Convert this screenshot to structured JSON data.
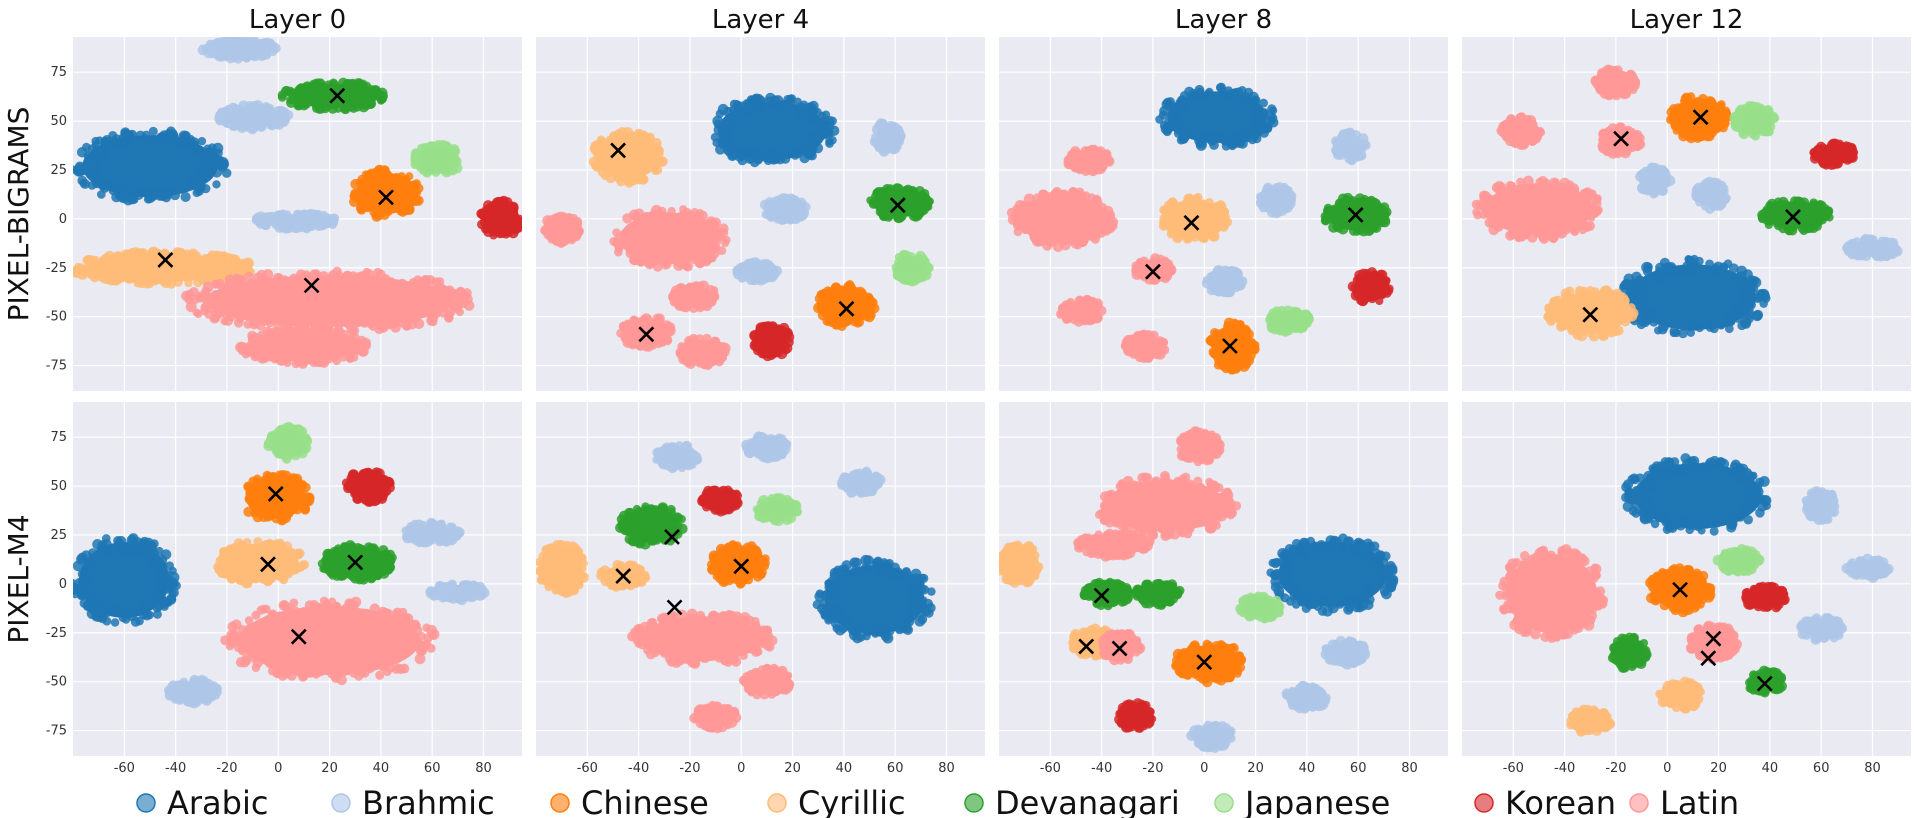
{
  "chart_data": {
    "type": "scatter",
    "columns": [
      "Layer 0",
      "Layer 4",
      "Layer 8",
      "Layer 12"
    ],
    "rows": [
      "PIXEL-BIGRAMS",
      "PIXEL-M4"
    ],
    "xlim": [
      -80,
      95
    ],
    "ylim": [
      -88,
      93
    ],
    "xticks": [
      -60,
      -40,
      -20,
      0,
      20,
      40,
      60,
      80
    ],
    "yticks": [
      -75,
      -50,
      -25,
      0,
      25,
      50,
      75
    ],
    "grid": true,
    "legend_position": "bottom",
    "legend": [
      {
        "name": "Arabic",
        "color": "#1f77b4"
      },
      {
        "name": "Brahmic",
        "color": "#aec7e8"
      },
      {
        "name": "Chinese",
        "color": "#ff7f0e"
      },
      {
        "name": "Cyrillic",
        "color": "#ffbb78"
      },
      {
        "name": "Devanagari",
        "color": "#2ca02c"
      },
      {
        "name": "Japanese",
        "color": "#98df8a"
      },
      {
        "name": "Korean",
        "color": "#d62728"
      },
      {
        "name": "Latin",
        "color": "#ff9896"
      }
    ],
    "panels": [
      {
        "row": "PIXEL-BIGRAMS",
        "column": "Layer 0",
        "clusters": [
          {
            "script": "Arabic",
            "cx": -50,
            "cy": 27,
            "rx": 30,
            "ry": 18
          },
          {
            "script": "Brahmic",
            "cx": -15,
            "cy": 87,
            "rx": 14,
            "ry": 5
          },
          {
            "script": "Brahmic",
            "cx": -10,
            "cy": 52,
            "rx": 14,
            "ry": 6
          },
          {
            "script": "Brahmic",
            "cx": 7,
            "cy": -1,
            "rx": 16,
            "ry": 4
          },
          {
            "script": "Devanagari",
            "cx": 22,
            "cy": 63,
            "rx": 20,
            "ry": 7
          },
          {
            "script": "Chinese",
            "cx": 42,
            "cy": 13,
            "rx": 13,
            "ry": 12
          },
          {
            "script": "Japanese",
            "cx": 62,
            "cy": 30,
            "rx": 9,
            "ry": 8
          },
          {
            "script": "Korean",
            "cx": 87,
            "cy": 0,
            "rx": 8,
            "ry": 9
          },
          {
            "script": "Cyrillic",
            "cx": -45,
            "cy": -25,
            "rx": 35,
            "ry": 8
          },
          {
            "script": "Latin",
            "cx": 20,
            "cy": -42,
            "rx": 55,
            "ry": 15
          },
          {
            "script": "Latin",
            "cx": 10,
            "cy": -65,
            "rx": 25,
            "ry": 9
          }
        ],
        "centroids": [
          {
            "x": -44,
            "y": -21
          },
          {
            "x": 13,
            "y": -34
          },
          {
            "x": 23,
            "y": 63
          },
          {
            "x": 42,
            "y": 11
          }
        ]
      },
      {
        "row": "PIXEL-BIGRAMS",
        "column": "Layer 4",
        "clusters": [
          {
            "script": "Arabic",
            "cx": 12,
            "cy": 45,
            "rx": 24,
            "ry": 17
          },
          {
            "script": "Cyrillic",
            "cx": -44,
            "cy": 32,
            "rx": 14,
            "ry": 13
          },
          {
            "script": "Brahmic",
            "cx": 57,
            "cy": 42,
            "rx": 5,
            "ry": 8
          },
          {
            "script": "Brahmic",
            "cx": 17,
            "cy": 5,
            "rx": 8,
            "ry": 6
          },
          {
            "script": "Brahmic",
            "cx": 6,
            "cy": -27,
            "rx": 8,
            "ry": 5
          },
          {
            "script": "Devanagari",
            "cx": 62,
            "cy": 8,
            "rx": 12,
            "ry": 8
          },
          {
            "script": "Japanese",
            "cx": 66,
            "cy": -25,
            "rx": 7,
            "ry": 7
          },
          {
            "script": "Chinese",
            "cx": 41,
            "cy": -44,
            "rx": 11,
            "ry": 11
          },
          {
            "script": "Korean",
            "cx": 12,
            "cy": -62,
            "rx": 7,
            "ry": 8
          },
          {
            "script": "Latin",
            "cx": -28,
            "cy": -10,
            "rx": 22,
            "ry": 15
          },
          {
            "script": "Latin",
            "cx": -70,
            "cy": -5,
            "rx": 7,
            "ry": 7
          },
          {
            "script": "Latin",
            "cx": -37,
            "cy": -58,
            "rx": 10,
            "ry": 8
          },
          {
            "script": "Latin",
            "cx": -15,
            "cy": -68,
            "rx": 9,
            "ry": 7
          },
          {
            "script": "Latin",
            "cx": -18,
            "cy": -40,
            "rx": 9,
            "ry": 6
          }
        ],
        "centroids": [
          {
            "x": -48,
            "y": 35
          },
          {
            "x": 61,
            "y": 7
          },
          {
            "x": 41,
            "y": -46
          },
          {
            "x": -37,
            "y": -59
          }
        ]
      },
      {
        "row": "PIXEL-BIGRAMS",
        "column": "Layer 8",
        "clusters": [
          {
            "script": "Arabic",
            "cx": 5,
            "cy": 52,
            "rx": 22,
            "ry": 15
          },
          {
            "script": "Brahmic",
            "cx": 57,
            "cy": 37,
            "rx": 6,
            "ry": 7
          },
          {
            "script": "Brahmic",
            "cx": 28,
            "cy": 10,
            "rx": 6,
            "ry": 7
          },
          {
            "script": "Brahmic",
            "cx": 8,
            "cy": -32,
            "rx": 7,
            "ry": 6
          },
          {
            "script": "Cyrillic",
            "cx": -4,
            "cy": 0,
            "rx": 13,
            "ry": 11
          },
          {
            "script": "Devanagari",
            "cx": 59,
            "cy": 2,
            "rx": 12,
            "ry": 9
          },
          {
            "script": "Korean",
            "cx": 65,
            "cy": -35,
            "rx": 7,
            "ry": 8
          },
          {
            "script": "Japanese",
            "cx": 33,
            "cy": -52,
            "rx": 8,
            "ry": 6
          },
          {
            "script": "Chinese",
            "cx": 11,
            "cy": -65,
            "rx": 9,
            "ry": 12
          },
          {
            "script": "Latin",
            "cx": -55,
            "cy": 0,
            "rx": 20,
            "ry": 14
          },
          {
            "script": "Latin",
            "cx": -45,
            "cy": 30,
            "rx": 8,
            "ry": 6
          },
          {
            "script": "Latin",
            "cx": -20,
            "cy": -26,
            "rx": 7,
            "ry": 6
          },
          {
            "script": "Latin",
            "cx": -48,
            "cy": -47,
            "rx": 8,
            "ry": 6
          },
          {
            "script": "Latin",
            "cx": -23,
            "cy": -65,
            "rx": 8,
            "ry": 6
          }
        ],
        "centroids": [
          {
            "x": -5,
            "y": -2
          },
          {
            "x": -20,
            "y": -27
          },
          {
            "x": 10,
            "y": -65
          },
          {
            "x": 59,
            "y": 2
          }
        ]
      },
      {
        "row": "PIXEL-BIGRAMS",
        "column": "Layer 12",
        "clusters": [
          {
            "script": "Latin",
            "cx": -20,
            "cy": 70,
            "rx": 8,
            "ry": 7
          },
          {
            "script": "Latin",
            "cx": -57,
            "cy": 45,
            "rx": 8,
            "ry": 7
          },
          {
            "script": "Latin",
            "cx": -18,
            "cy": 40,
            "rx": 8,
            "ry": 7
          },
          {
            "script": "Latin",
            "cx": -50,
            "cy": 5,
            "rx": 24,
            "ry": 15
          },
          {
            "script": "Chinese",
            "cx": 12,
            "cy": 52,
            "rx": 11,
            "ry": 11
          },
          {
            "script": "Japanese",
            "cx": 34,
            "cy": 50,
            "rx": 8,
            "ry": 8
          },
          {
            "script": "Korean",
            "cx": 65,
            "cy": 33,
            "rx": 8,
            "ry": 6
          },
          {
            "script": "Brahmic",
            "cx": -5,
            "cy": 20,
            "rx": 6,
            "ry": 7
          },
          {
            "script": "Brahmic",
            "cx": 17,
            "cy": 12,
            "rx": 6,
            "ry": 7
          },
          {
            "script": "Brahmic",
            "cx": 80,
            "cy": -15,
            "rx": 10,
            "ry": 5
          },
          {
            "script": "Devanagari",
            "cx": 50,
            "cy": 2,
            "rx": 13,
            "ry": 8
          },
          {
            "script": "Arabic",
            "cx": 10,
            "cy": -40,
            "rx": 28,
            "ry": 19
          },
          {
            "script": "Cyrillic",
            "cx": -30,
            "cy": -48,
            "rx": 17,
            "ry": 12
          }
        ],
        "centroids": [
          {
            "x": -18,
            "y": 41
          },
          {
            "x": 13,
            "y": 52
          },
          {
            "x": 49,
            "y": 1
          },
          {
            "x": -30,
            "y": -49
          }
        ]
      },
      {
        "row": "PIXEL-M4",
        "column": "Layer 0",
        "clusters": [
          {
            "script": "Arabic",
            "cx": -60,
            "cy": 2,
            "rx": 20,
            "ry": 22
          },
          {
            "script": "Japanese",
            "cx": 4,
            "cy": 72,
            "rx": 8,
            "ry": 8
          },
          {
            "script": "Korean",
            "cx": 35,
            "cy": 50,
            "rx": 9,
            "ry": 8
          },
          {
            "script": "Chinese",
            "cx": -1,
            "cy": 44,
            "rx": 13,
            "ry": 12
          },
          {
            "script": "Brahmic",
            "cx": 60,
            "cy": 26,
            "rx": 11,
            "ry": 5
          },
          {
            "script": "Brahmic",
            "cx": 70,
            "cy": -4,
            "rx": 11,
            "ry": 4
          },
          {
            "script": "Brahmic",
            "cx": -33,
            "cy": -55,
            "rx": 10,
            "ry": 6
          },
          {
            "script": "Cyrillic",
            "cx": -7,
            "cy": 11,
            "rx": 17,
            "ry": 11
          },
          {
            "script": "Devanagari",
            "cx": 31,
            "cy": 11,
            "rx": 14,
            "ry": 9
          },
          {
            "script": "Latin",
            "cx": 20,
            "cy": -29,
            "rx": 40,
            "ry": 20
          }
        ],
        "centroids": [
          {
            "x": -1,
            "y": 46
          },
          {
            "x": -4,
            "y": 10
          },
          {
            "x": 30,
            "y": 11
          },
          {
            "x": 8,
            "y": -27
          }
        ]
      },
      {
        "row": "PIXEL-M4",
        "column": "Layer 4",
        "clusters": [
          {
            "script": "Brahmic",
            "cx": -25,
            "cy": 65,
            "rx": 8,
            "ry": 6
          },
          {
            "script": "Brahmic",
            "cx": 10,
            "cy": 70,
            "rx": 8,
            "ry": 6
          },
          {
            "script": "Brahmic",
            "cx": 47,
            "cy": 52,
            "rx": 8,
            "ry": 6
          },
          {
            "script": "Korean",
            "cx": -8,
            "cy": 43,
            "rx": 7,
            "ry": 6
          },
          {
            "script": "Japanese",
            "cx": 14,
            "cy": 38,
            "rx": 8,
            "ry": 6
          },
          {
            "script": "Devanagari",
            "cx": -35,
            "cy": 30,
            "rx": 12,
            "ry": 10
          },
          {
            "script": "Chinese",
            "cx": -1,
            "cy": 10,
            "rx": 11,
            "ry": 10
          },
          {
            "script": "Cyrillic",
            "cx": -70,
            "cy": 8,
            "rx": 9,
            "ry": 13
          },
          {
            "script": "Cyrillic",
            "cx": -46,
            "cy": 4,
            "rx": 9,
            "ry": 6
          },
          {
            "script": "Arabic",
            "cx": 52,
            "cy": -8,
            "rx": 22,
            "ry": 20
          },
          {
            "script": "Latin",
            "cx": -15,
            "cy": -28,
            "rx": 27,
            "ry": 13
          },
          {
            "script": "Latin",
            "cx": 10,
            "cy": -50,
            "rx": 9,
            "ry": 7
          },
          {
            "script": "Latin",
            "cx": -10,
            "cy": -68,
            "rx": 8,
            "ry": 6
          }
        ],
        "centroids": [
          {
            "x": -27,
            "y": 24
          },
          {
            "x": -46,
            "y": 4
          },
          {
            "x": 0,
            "y": 9
          },
          {
            "x": -26,
            "y": -12
          }
        ]
      },
      {
        "row": "PIXEL-M4",
        "column": "Layer 8",
        "clusters": [
          {
            "script": "Latin",
            "cx": -2,
            "cy": 70,
            "rx": 8,
            "ry": 8
          },
          {
            "script": "Latin",
            "cx": -15,
            "cy": 40,
            "rx": 27,
            "ry": 15
          },
          {
            "script": "Latin",
            "cx": -35,
            "cy": 20,
            "rx": 14,
            "ry": 6
          },
          {
            "script": "Cyrillic",
            "cx": -72,
            "cy": 10,
            "rx": 8,
            "ry": 10
          },
          {
            "script": "Arabic",
            "cx": 50,
            "cy": 5,
            "rx": 24,
            "ry": 19
          },
          {
            "script": "Devanagari",
            "cx": -38,
            "cy": -5,
            "rx": 9,
            "ry": 6
          },
          {
            "script": "Devanagari",
            "cx": -18,
            "cy": -5,
            "rx": 9,
            "ry": 6
          },
          {
            "script": "Japanese",
            "cx": 22,
            "cy": -12,
            "rx": 8,
            "ry": 6
          },
          {
            "script": "Brahmic",
            "cx": 55,
            "cy": -35,
            "rx": 8,
            "ry": 6
          },
          {
            "script": "Cyrillic",
            "cx": -43,
            "cy": -30,
            "rx": 9,
            "ry": 7
          },
          {
            "script": "Latin",
            "cx": -33,
            "cy": -32,
            "rx": 8,
            "ry": 7
          },
          {
            "script": "Chinese",
            "cx": 2,
            "cy": -40,
            "rx": 13,
            "ry": 10
          },
          {
            "script": "Brahmic",
            "cx": 40,
            "cy": -58,
            "rx": 8,
            "ry": 6
          },
          {
            "script": "Korean",
            "cx": -27,
            "cy": -68,
            "rx": 7,
            "ry": 7
          },
          {
            "script": "Brahmic",
            "cx": 3,
            "cy": -78,
            "rx": 8,
            "ry": 6
          }
        ],
        "centroids": [
          {
            "x": -40,
            "y": -6
          },
          {
            "x": -46,
            "y": -32
          },
          {
            "x": -33,
            "y": -33
          },
          {
            "x": 0,
            "y": -40
          }
        ]
      },
      {
        "row": "PIXEL-M4",
        "column": "Layer 12",
        "clusters": [
          {
            "script": "Arabic",
            "cx": 12,
            "cy": 45,
            "rx": 28,
            "ry": 19
          },
          {
            "script": "Brahmic",
            "cx": 60,
            "cy": 40,
            "rx": 6,
            "ry": 8
          },
          {
            "script": "Brahmic",
            "cx": 78,
            "cy": 8,
            "rx": 8,
            "ry": 5
          },
          {
            "script": "Brahmic",
            "cx": 60,
            "cy": -23,
            "rx": 8,
            "ry": 6
          },
          {
            "script": "Japanese",
            "cx": 28,
            "cy": 12,
            "rx": 8,
            "ry": 6
          },
          {
            "script": "Korean",
            "cx": 38,
            "cy": -7,
            "rx": 8,
            "ry": 6
          },
          {
            "script": "Chinese",
            "cx": 5,
            "cy": -3,
            "rx": 12,
            "ry": 11
          },
          {
            "script": "Latin",
            "cx": -45,
            "cy": -5,
            "rx": 20,
            "ry": 23
          },
          {
            "script": "Latin",
            "cx": 18,
            "cy": -30,
            "rx": 9,
            "ry": 9
          },
          {
            "script": "Devanagari",
            "cx": -15,
            "cy": -35,
            "rx": 7,
            "ry": 8
          },
          {
            "script": "Devanagari",
            "cx": 38,
            "cy": -50,
            "rx": 7,
            "ry": 6
          },
          {
            "script": "Cyrillic",
            "cx": 5,
            "cy": -57,
            "rx": 8,
            "ry": 7
          },
          {
            "script": "Cyrillic",
            "cx": -30,
            "cy": -70,
            "rx": 8,
            "ry": 6
          }
        ],
        "centroids": [
          {
            "x": 5,
            "y": -3
          },
          {
            "x": 18,
            "y": -28
          },
          {
            "x": 16,
            "y": -38
          },
          {
            "x": 38,
            "y": -51
          }
        ]
      }
    ]
  }
}
